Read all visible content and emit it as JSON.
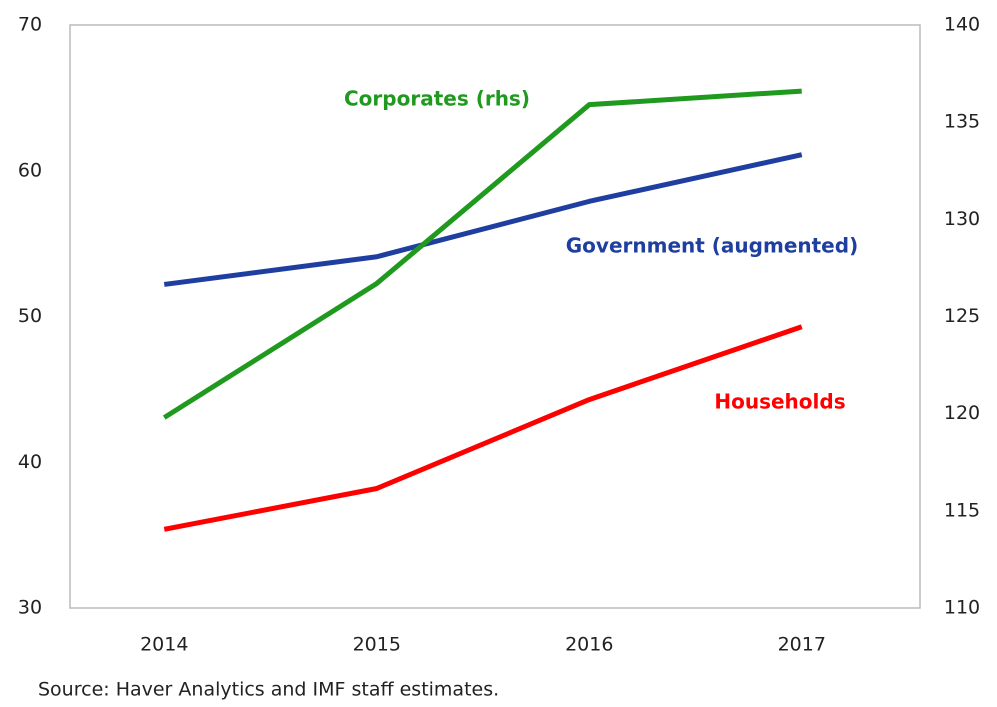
{
  "chart_data": {
    "type": "line",
    "categories": [
      "2014",
      "2015",
      "2016",
      "2017"
    ],
    "series": [
      {
        "name": "Government (augmented)",
        "color": "#1f3fa0",
        "values": [
          52.2,
          54.1,
          57.9,
          61.1
        ]
      },
      {
        "name": "Households",
        "color": "#ff0000",
        "values": [
          35.4,
          38.2,
          44.3,
          49.3
        ]
      },
      {
        "name": "Corporates (rhs)",
        "color": "#1f9a1f",
        "axis": "y2",
        "values": [
          119.8,
          126.7,
          135.9,
          136.6
        ]
      }
    ],
    "ylim": [
      30,
      70
    ],
    "yticks": [
      30,
      40,
      50,
      60,
      70
    ],
    "y2lim": [
      110,
      140
    ],
    "y2ticks": [
      110,
      115,
      120,
      125,
      130,
      135,
      140
    ],
    "source": "Source: Haver Analytics and IMF staff estimates."
  }
}
